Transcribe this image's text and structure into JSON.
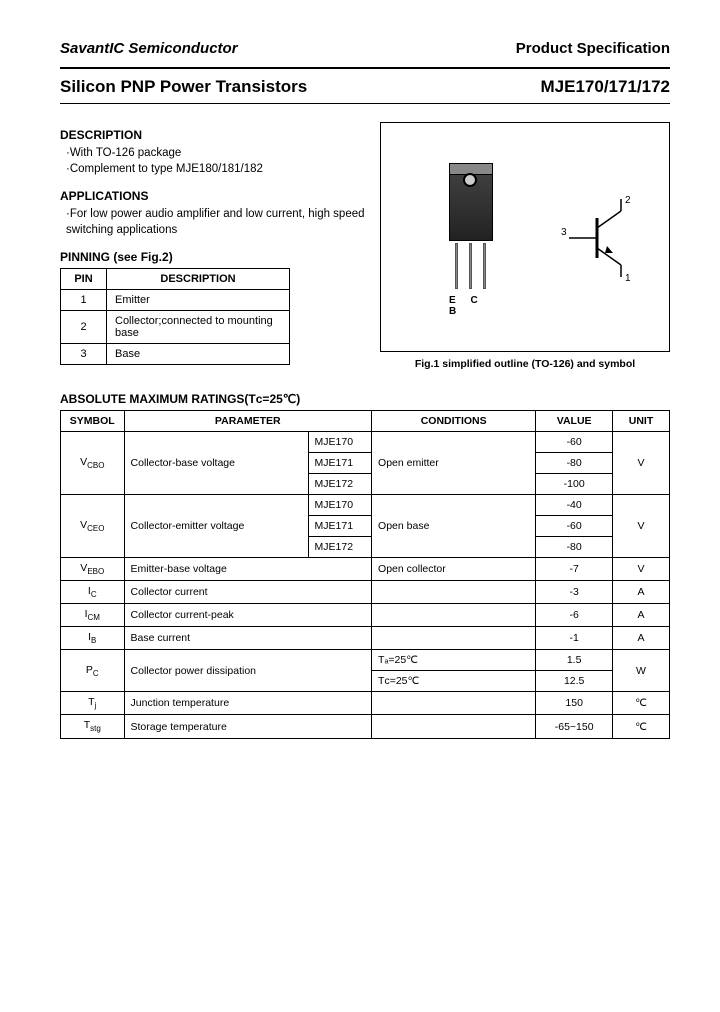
{
  "header": {
    "company": "SavantIC Semiconductor",
    "spec": "Product Specification",
    "subtitle": "Silicon PNP Power Transistors",
    "part": "MJE170/171/172"
  },
  "description": {
    "heading": "DESCRIPTION",
    "line1": "·With TO-126 package",
    "line2": "·Complement to type MJE180/181/182"
  },
  "applications": {
    "heading": "APPLICATIONS",
    "body": "·For low power audio amplifier and low current, high speed switching applications"
  },
  "pinning": {
    "heading": "PINNING (see Fig.2)",
    "col1": "PIN",
    "col2": "DESCRIPTION",
    "rows": [
      {
        "pin": "1",
        "desc": "Emitter"
      },
      {
        "pin": "2",
        "desc": "Collector;connected to mounting base"
      },
      {
        "pin": "3",
        "desc": "Base"
      }
    ]
  },
  "figure": {
    "lead_label": "E  C  B",
    "caption": "Fig.1 simplified outline (TO-126) and symbol",
    "symbol_pins": {
      "base": "3",
      "collector": "2",
      "emitter": "1"
    }
  },
  "ratings": {
    "heading": "ABSOLUTE MAXIMUM RATINGS(Tᴄ=25℃)",
    "cols": {
      "symbol": "SYMBOL",
      "parameter": "PARAMETER",
      "conditions": "CONDITIONS",
      "value": "VALUE",
      "unit": "UNIT"
    },
    "vcbo": {
      "sym": "V",
      "sub": "CBO",
      "param": "Collector-base voltage",
      "sub1": "MJE170",
      "sub2": "MJE171",
      "sub3": "MJE172",
      "cond": "Open emitter",
      "v1": "-60",
      "v2": "-80",
      "v3": "-100",
      "unit": "V"
    },
    "vceo": {
      "sym": "V",
      "sub": "CEO",
      "param": "Collector-emitter voltage",
      "sub1": "MJE170",
      "sub2": "MJE171",
      "sub3": "MJE172",
      "cond": "Open base",
      "v1": "-40",
      "v2": "-60",
      "v3": "-80",
      "unit": "V"
    },
    "vebo": {
      "sym": "V",
      "sub": "EBO",
      "param": "Emitter-base voltage",
      "cond": "Open collector",
      "val": "-7",
      "unit": "V"
    },
    "ic": {
      "sym": "I",
      "sub": "C",
      "param": "Collector current",
      "cond": "",
      "val": "-3",
      "unit": "A"
    },
    "icm": {
      "sym": "I",
      "sub": "CM",
      "param": "Collector current-peak",
      "cond": "",
      "val": "-6",
      "unit": "A"
    },
    "ib": {
      "sym": "I",
      "sub": "B",
      "param": "Base current",
      "cond": "",
      "val": "-1",
      "unit": "A"
    },
    "pc": {
      "sym": "P",
      "sub": "C",
      "param": "Collector power dissipation",
      "c1": "Tₐ=25℃",
      "c2": "Tᴄ=25℃",
      "v1": "1.5",
      "v2": "12.5",
      "unit": "W"
    },
    "tj": {
      "sym": "T",
      "sub": "j",
      "param": "Junction temperature",
      "val": "150",
      "unit": "℃"
    },
    "tstg": {
      "sym": "T",
      "sub": "stg",
      "param": "Storage temperature",
      "val": "-65~150",
      "unit": "℃"
    }
  },
  "col_widths": {
    "symbol": "58px",
    "parameter": "168px",
    "subpart": "58px",
    "conditions": "150px",
    "value": "70px",
    "unit": "52px"
  }
}
